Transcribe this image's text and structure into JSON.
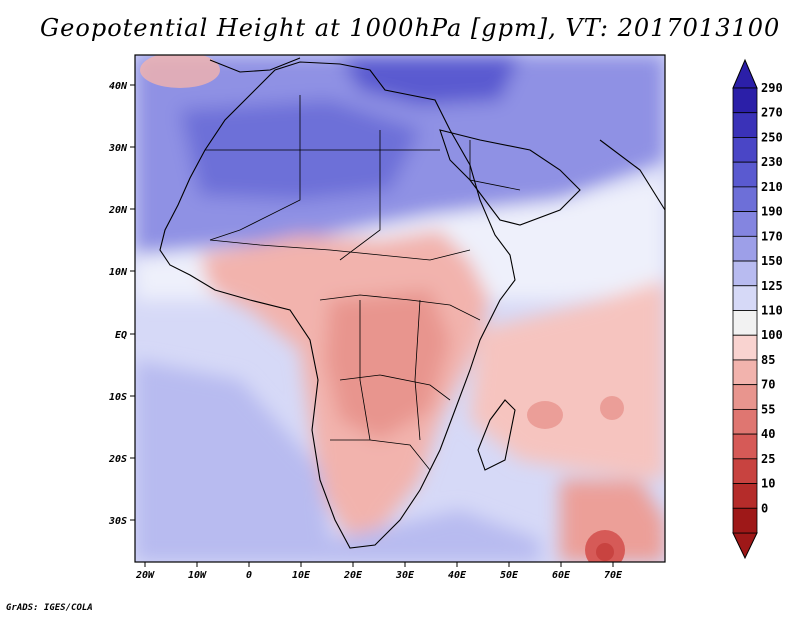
{
  "title": "Geopotential Height at 1000hPa [gpm], VT: 2017013100",
  "credit": "GrADS: IGES/COLA",
  "map": {
    "lon_range": [
      -22,
      80
    ],
    "lat_range": [
      -37,
      45
    ],
    "lon_ticks": [
      "20W",
      "10W",
      "0",
      "10E",
      "20E",
      "30E",
      "40E",
      "50E",
      "60E",
      "70E"
    ],
    "lat_ticks": [
      "40N",
      "30N",
      "20N",
      "10N",
      "EQ",
      "10S",
      "20S",
      "30S"
    ]
  },
  "colorbar": {
    "levels": [
      "290",
      "270",
      "250",
      "230",
      "210",
      "190",
      "170",
      "150",
      "125",
      "110",
      "100",
      "85",
      "70",
      "55",
      "40",
      "25",
      "10",
      "0"
    ],
    "colors": [
      "#2b1fa8",
      "#3a32b8",
      "#4a46c6",
      "#5a5ad0",
      "#6d6fd8",
      "#8485e0",
      "#9d9fe8",
      "#b8bbf0",
      "#d6d9f7",
      "#f2f2f2",
      "#f9d3d0",
      "#f2b3ad",
      "#e8958e",
      "#df7671",
      "#d65a57",
      "#c84340",
      "#b52c2a",
      "#9e1818"
    ]
  }
}
